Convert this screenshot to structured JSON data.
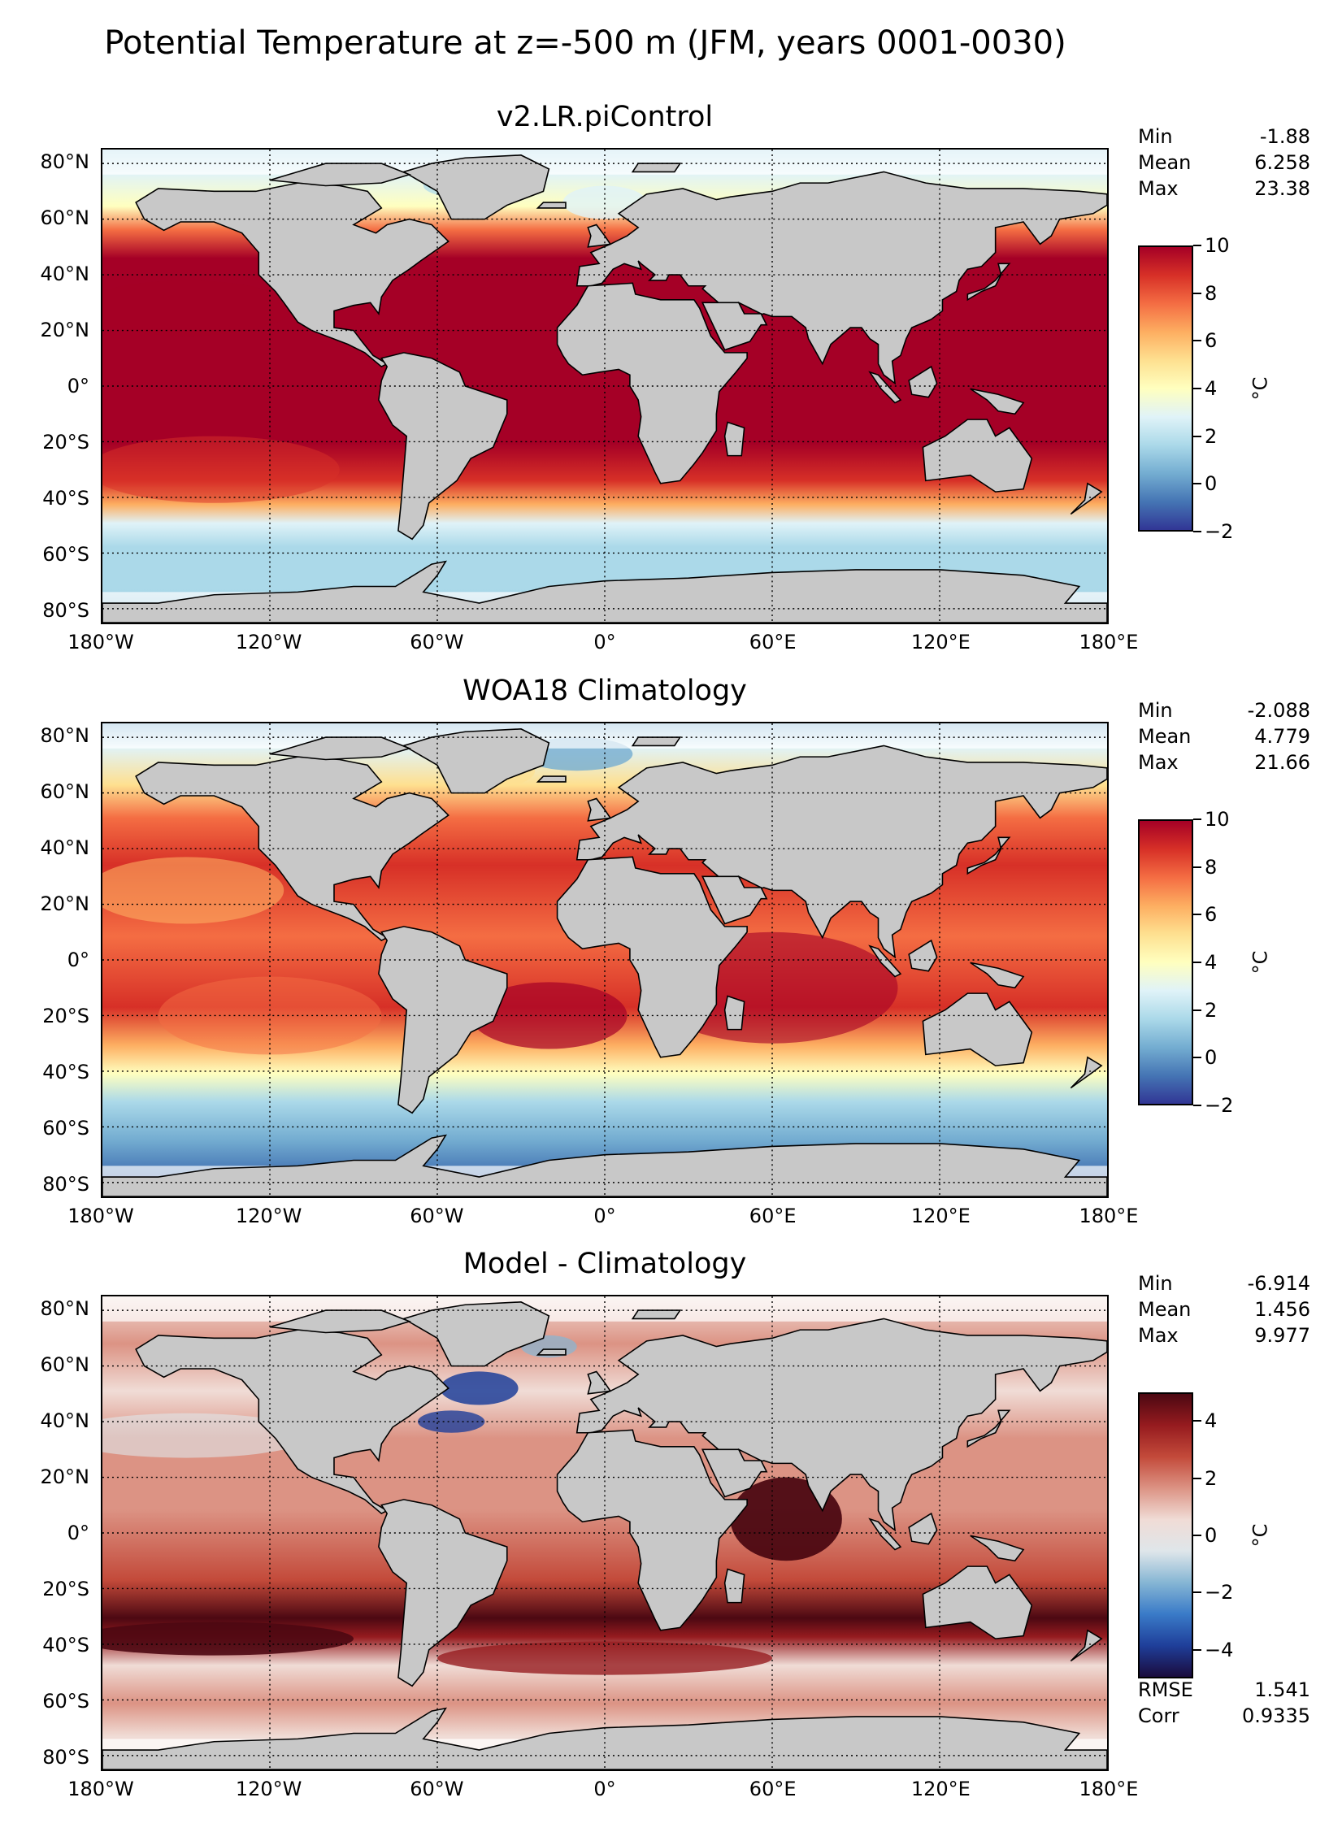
{
  "figure": {
    "title": "Potential Temperature at z=-500 m (JFM, years 0001-0030)"
  },
  "axes": {
    "lat_labels": [
      "80°N",
      "60°N",
      "40°N",
      "20°N",
      "0°",
      "20°S",
      "40°S",
      "60°S",
      "80°S"
    ],
    "lon_labels": [
      "180°W",
      "120°W",
      "60°W",
      "0°",
      "60°E",
      "120°E",
      "180°E"
    ]
  },
  "colors": {
    "land": "#c8c8c8",
    "ice_mask": "#ffffff",
    "rdylbu_r": [
      "#313695",
      "#4575b4",
      "#74add1",
      "#abd9e9",
      "#e0f3f8",
      "#ffffbf",
      "#fee090",
      "#fdae61",
      "#f46d43",
      "#d73027",
      "#a50026"
    ],
    "balance": [
      "#1a0b3d",
      "#1f3f9a",
      "#3a7bc8",
      "#86b6d4",
      "#dfe6ea",
      "#f0dcd6",
      "#dc9384",
      "#c34a3a",
      "#961b1f",
      "#4c0812"
    ]
  },
  "panels": [
    {
      "title": "v2.LR.piControl",
      "stats": [
        {
          "label": "Min",
          "value": "-1.88"
        },
        {
          "label": "Mean",
          "value": "6.258"
        },
        {
          "label": "Max",
          "value": "23.38"
        }
      ],
      "colorbar": {
        "unit": "°C",
        "ticks": [
          "10",
          "8",
          "6",
          "4",
          "2",
          "0",
          "−2"
        ]
      }
    },
    {
      "title": "WOA18 Climatology",
      "stats": [
        {
          "label": "Min",
          "value": "-2.088"
        },
        {
          "label": "Mean",
          "value": "4.779"
        },
        {
          "label": "Max",
          "value": "21.66"
        }
      ],
      "colorbar": {
        "unit": "°C",
        "ticks": [
          "10",
          "8",
          "6",
          "4",
          "2",
          "0",
          "−2"
        ]
      }
    },
    {
      "title": "Model - Climatology",
      "stats": [
        {
          "label": "Min",
          "value": "-6.914"
        },
        {
          "label": "Mean",
          "value": "1.456"
        },
        {
          "label": "Max",
          "value": "9.977"
        }
      ],
      "extra_stats": [
        {
          "label": "RMSE",
          "value": "1.541"
        },
        {
          "label": "Corr",
          "value": "0.9335"
        }
      ],
      "colorbar": {
        "unit": "°C",
        "ticks": [
          "4",
          "2",
          "0",
          "−2",
          "−4"
        ]
      }
    }
  ],
  "chart_data": {
    "type": "heatmap",
    "title": "Potential Temperature at z=-500 m (JFM, years 0001-0030)",
    "x_range": [
      -180,
      180
    ],
    "y_range": [
      -85,
      85
    ],
    "colorbar_ranges": {
      "v2.LR.piControl": [
        -2,
        10
      ],
      "WOA18 Climatology": [
        -2,
        10
      ],
      "Model - Climatology": [
        -5,
        5
      ]
    },
    "stats": {
      "v2.LR.piControl": {
        "min": -1.88,
        "mean": 6.258,
        "max": 23.38
      },
      "WOA18 Climatology": {
        "min": -2.088,
        "mean": 4.779,
        "max": 21.66
      },
      "Model - Climatology": {
        "min": -6.914,
        "mean": 1.456,
        "max": 9.977,
        "rmse": 1.541,
        "corr": 0.9335
      }
    }
  }
}
